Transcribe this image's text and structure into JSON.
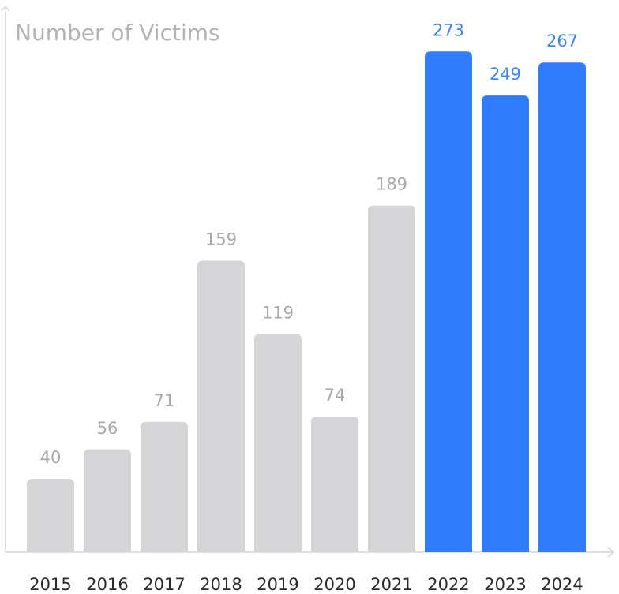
{
  "chart_data": {
    "type": "bar",
    "title": "Number of Victims",
    "xlabel": "",
    "ylabel": "",
    "categories": [
      "2015",
      "2016",
      "2017",
      "2018",
      "2019",
      "2020",
      "2021",
      "2022",
      "2023",
      "2024"
    ],
    "values": [
      40,
      56,
      71,
      159,
      119,
      74,
      189,
      273,
      249,
      267
    ],
    "highlighted_categories": [
      "2022",
      "2023",
      "2024"
    ],
    "ylim": [
      0,
      300
    ],
    "grid": false,
    "legend": "none",
    "colors": {
      "default_bar": "#d5d5d8",
      "highlight_bar": "#2f7dfd",
      "default_label": "#a8a8ad",
      "highlight_label": "#3a86ff",
      "tick_label": "#2b2b2f",
      "axis": "#d6d6d9",
      "title": "#b3b3b8"
    }
  }
}
